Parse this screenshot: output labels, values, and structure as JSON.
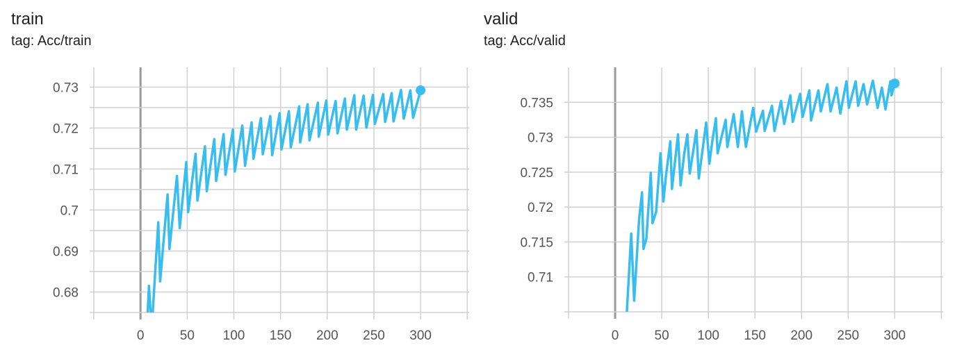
{
  "chart_data": [
    {
      "type": "line",
      "title": "train",
      "subtitle": "tag: Acc/train",
      "xlabel": "",
      "ylabel": "",
      "xlim": [
        -50,
        352
      ],
      "ylim": [
        0.675,
        0.7348
      ],
      "grid": true,
      "color": "#38bdf0",
      "x_ticks": [
        0,
        50,
        100,
        150,
        200,
        250,
        300
      ],
      "x_tick_labels": [
        "0",
        "50",
        "100",
        "150",
        "200",
        "250",
        "300"
      ],
      "y_gridlines": [
        0.675,
        0.68,
        0.685,
        0.69,
        0.695,
        0.7,
        0.705,
        0.71,
        0.715,
        0.72,
        0.725,
        0.73
      ],
      "y_ticks": [
        0.68,
        0.69,
        0.7,
        0.71,
        0.72,
        0.73
      ],
      "y_tick_labels": [
        "0.68",
        "0.69",
        "0.7",
        "0.71",
        "0.72",
        "0.73"
      ],
      "series": [
        {
          "x": [
            7,
            9,
            12,
            19,
            21,
            29,
            31,
            39,
            42,
            49,
            51,
            59,
            61,
            69,
            71,
            79,
            81,
            89,
            91,
            99,
            101,
            109,
            112,
            119,
            121,
            129,
            131,
            139,
            141,
            149,
            151,
            159,
            161,
            170,
            171,
            179,
            181,
            190,
            191,
            199,
            201,
            209,
            211,
            219,
            221,
            229,
            231,
            239,
            242,
            249,
            251,
            260,
            262,
            269,
            271,
            279,
            282,
            289,
            292,
            300
          ],
          "y": [
            0.672,
            0.6815,
            0.671,
            0.697,
            0.6826,
            0.7038,
            0.6905,
            0.7083,
            0.6956,
            0.7117,
            0.6995,
            0.7137,
            0.7023,
            0.7155,
            0.7046,
            0.7173,
            0.7071,
            0.7185,
            0.7086,
            0.7196,
            0.7094,
            0.7206,
            0.7108,
            0.7214,
            0.7125,
            0.7224,
            0.7136,
            0.7229,
            0.7134,
            0.7236,
            0.7148,
            0.7241,
            0.7153,
            0.7253,
            0.7165,
            0.7258,
            0.717,
            0.7262,
            0.7179,
            0.7267,
            0.7184,
            0.7266,
            0.7187,
            0.7272,
            0.7196,
            0.728,
            0.7196,
            0.7279,
            0.7201,
            0.7281,
            0.721,
            0.7283,
            0.7215,
            0.7285,
            0.7216,
            0.7293,
            0.7223,
            0.7292,
            0.7225,
            0.7292
          ]
        }
      ]
    },
    {
      "type": "line",
      "title": "valid",
      "subtitle": "tag: Acc/valid",
      "xlabel": "",
      "ylabel": "",
      "xlim": [
        -50,
        352
      ],
      "ylim": [
        0.705,
        0.74
      ],
      "grid": true,
      "color": "#38bdf0",
      "x_ticks": [
        0,
        50,
        100,
        150,
        200,
        250,
        300
      ],
      "x_tick_labels": [
        "0",
        "50",
        "100",
        "150",
        "200",
        "250",
        "300"
      ],
      "y_gridlines": [
        0.705,
        0.71,
        0.715,
        0.72,
        0.725,
        0.73,
        0.735
      ],
      "y_ticks": [
        0.71,
        0.715,
        0.72,
        0.725,
        0.73,
        0.735
      ],
      "y_tick_labels": [
        "0.71",
        "0.715",
        "0.72",
        "0.725",
        "0.73",
        "0.735"
      ],
      "series": [
        {
          "x": [
            12.6,
            17.3,
            20.4,
            25.7,
            28.8,
            30.4,
            33.5,
            38.2,
            40.1,
            44.0,
            48.7,
            51.8,
            54.5,
            59.2,
            61.0,
            67.5,
            70.2,
            74.1,
            77.5,
            80.1,
            87.2,
            89.8,
            97.7,
            101.1,
            104.2,
            108.1,
            110.0,
            118.6,
            120.4,
            127.2,
            131.7,
            136.1,
            140.3,
            148.2,
            151.3,
            158.6,
            160.5,
            168.3,
            171.0,
            178.0,
            181.4,
            188.0,
            190.6,
            198.4,
            201.1,
            208.4,
            210.2,
            218.1,
            220.7,
            227.8,
            231.2,
            237.7,
            241.6,
            248.2,
            250.8,
            258.1,
            260.8,
            266.5,
            270.4,
            276.5,
            281.7,
            286.2,
            290.1,
            295.3,
            296.6,
            300
          ],
          "y": [
            0.705,
            0.7162,
            0.7066,
            0.7182,
            0.7221,
            0.714,
            0.7155,
            0.7249,
            0.7177,
            0.7193,
            0.7277,
            0.7208,
            0.7244,
            0.7294,
            0.7226,
            0.7304,
            0.7231,
            0.7276,
            0.7304,
            0.7248,
            0.731,
            0.7241,
            0.7321,
            0.7262,
            0.7294,
            0.7327,
            0.7277,
            0.7325,
            0.7286,
            0.7333,
            0.7286,
            0.7337,
            0.7286,
            0.7342,
            0.7308,
            0.7338,
            0.7309,
            0.7345,
            0.7309,
            0.7352,
            0.7319,
            0.736,
            0.7322,
            0.7362,
            0.7329,
            0.7367,
            0.7324,
            0.7367,
            0.7337,
            0.7376,
            0.7337,
            0.7371,
            0.7334,
            0.738,
            0.7342,
            0.738,
            0.7345,
            0.7376,
            0.7347,
            0.7381,
            0.7342,
            0.7371,
            0.734,
            0.738,
            0.736,
            0.7377
          ]
        }
      ]
    }
  ]
}
